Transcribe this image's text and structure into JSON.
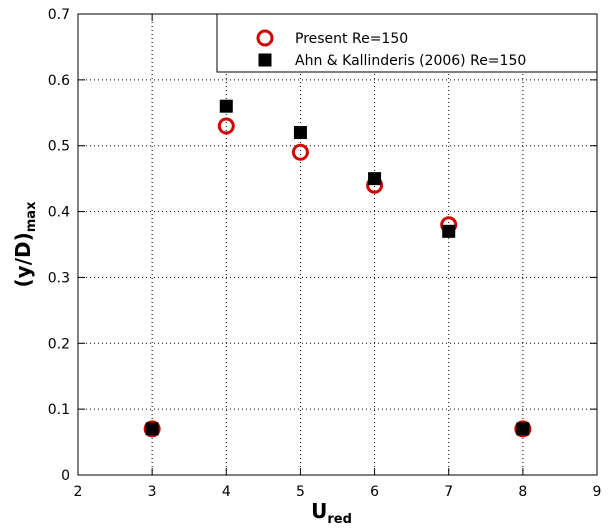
{
  "chart_data": {
    "type": "scatter",
    "xlabel": {
      "main": "U",
      "sub": "red"
    },
    "ylabel": {
      "main": "(y/D)",
      "sub": "max"
    },
    "xlim": [
      2,
      9
    ],
    "ylim": [
      0,
      0.7
    ],
    "x_ticks": [
      2,
      3,
      4,
      5,
      6,
      7,
      8,
      9
    ],
    "y_ticks": [
      0,
      0.1,
      0.2,
      0.3,
      0.4,
      0.5,
      0.6,
      0.7
    ],
    "grid": true,
    "legend_position": "top-right",
    "series": [
      {
        "name": "Present Re=150",
        "marker": "open-circle",
        "color": "#d40000",
        "x": [
          3,
          4,
          5,
          6,
          7,
          8
        ],
        "y": [
          0.07,
          0.53,
          0.49,
          0.44,
          0.38,
          0.07
        ]
      },
      {
        "name": "Ahn & Kallinderis (2006) Re=150",
        "marker": "filled-square",
        "color": "#000000",
        "x": [
          3,
          4,
          5,
          6,
          7,
          8
        ],
        "y": [
          0.07,
          0.56,
          0.52,
          0.45,
          0.37,
          0.07
        ]
      }
    ]
  }
}
